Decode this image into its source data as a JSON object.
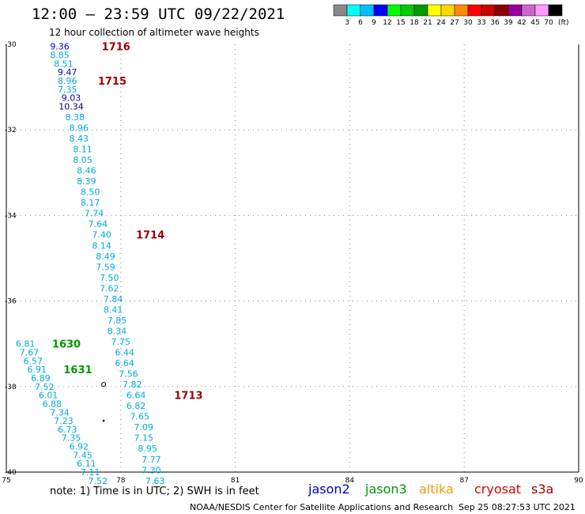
{
  "header": {
    "title": "12:00 – 23:59 UTC 09/22/2021",
    "subtitle": "12 hour collection of altimeter wave heights"
  },
  "colorbar": {
    "colors": [
      "#888888",
      "#00ffff",
      "#00bfff",
      "#0000ff",
      "#00ff00",
      "#00cc00",
      "#009900",
      "#ffff00",
      "#ffd700",
      "#ff8c00",
      "#ff0000",
      "#cc0000",
      "#8b0000",
      "#990099",
      "#cc66cc",
      "#ff99ff",
      "#000000"
    ],
    "labels": [
      "3",
      "6",
      "9",
      "12",
      "15",
      "18",
      "21",
      "24",
      "27",
      "30",
      "33",
      "36",
      "39",
      "42",
      "45",
      "70"
    ],
    "unit": "(ft)"
  },
  "footer": {
    "note": "note:  1) Time is in UTC;  2) SWH is in feet",
    "satellites": [
      {
        "name": "jason2",
        "color": "#0000cc"
      },
      {
        "name": "jason3",
        "color": "#009900"
      },
      {
        "name": "altika",
        "color": "#ff9900"
      },
      {
        "name": "cryosat",
        "color": "#dd0000"
      },
      {
        "name": "s3a",
        "color": "#990000"
      }
    ],
    "credit": "NOAA/NESDIS Center for Satellite Applications and Research",
    "timestamp": "Sep 25 08:27:53 UTC 2021"
  },
  "chart_data": {
    "type": "scatter",
    "title": "12:00 – 23:59 UTC 09/22/2021",
    "subtitle": "12 hour collection of altimeter wave heights",
    "xlabel": "",
    "ylabel": "",
    "xlim": [
      75,
      90
    ],
    "ylim": [
      -40,
      -30
    ],
    "x_ticks": [
      "75",
      "78",
      "81",
      "84",
      "87",
      "90"
    ],
    "y_ticks": [
      "-30",
      "-32",
      "-34",
      "-36",
      "-38",
      "-40"
    ],
    "grid": true,
    "value_colors": {
      "low": "#00aadd",
      "mid": "#0000cc",
      "high": "#000080"
    },
    "series": [
      {
        "name": "1716 / 1715 / 1714 / 1713",
        "color": "#990000",
        "points": [
          {
            "x": 76.4,
            "y": -30.05,
            "v": "9.36"
          },
          {
            "x": 76.4,
            "y": -30.25,
            "v": "8.85"
          },
          {
            "x": 76.5,
            "y": -30.45,
            "v": "8.51"
          },
          {
            "x": 76.6,
            "y": -30.65,
            "v": "9.47"
          },
          {
            "x": 76.6,
            "y": -30.85,
            "v": "8.96"
          },
          {
            "x": 76.6,
            "y": -31.05,
            "v": "7.35"
          },
          {
            "x": 76.7,
            "y": -31.25,
            "v": "9.03"
          },
          {
            "x": 76.7,
            "y": -31.45,
            "v": "10.34"
          },
          {
            "x": 76.8,
            "y": -31.7,
            "v": "8.38"
          },
          {
            "x": 76.9,
            "y": -31.95,
            "v": "8.96"
          },
          {
            "x": 76.9,
            "y": -32.2,
            "v": "8.43"
          },
          {
            "x": 77.0,
            "y": -32.45,
            "v": "8.11"
          },
          {
            "x": 77.0,
            "y": -32.7,
            "v": "8.05"
          },
          {
            "x": 77.1,
            "y": -32.95,
            "v": "8.46"
          },
          {
            "x": 77.1,
            "y": -33.2,
            "v": "8.39"
          },
          {
            "x": 77.2,
            "y": -33.45,
            "v": "8.50"
          },
          {
            "x": 77.2,
            "y": -33.7,
            "v": "8.17"
          },
          {
            "x": 77.3,
            "y": -33.95,
            "v": "7.74"
          },
          {
            "x": 77.4,
            "y": -34.2,
            "v": "7.64"
          },
          {
            "x": 77.5,
            "y": -34.45,
            "v": "7.40"
          },
          {
            "x": 77.5,
            "y": -34.7,
            "v": "8.14"
          },
          {
            "x": 77.6,
            "y": -34.95,
            "v": "8.49"
          },
          {
            "x": 77.6,
            "y": -35.2,
            "v": "7.59"
          },
          {
            "x": 77.7,
            "y": -35.45,
            "v": "7.50"
          },
          {
            "x": 77.7,
            "y": -35.7,
            "v": "7.62"
          },
          {
            "x": 77.8,
            "y": -35.95,
            "v": "7.84"
          },
          {
            "x": 77.8,
            "y": -36.2,
            "v": "8.41"
          },
          {
            "x": 77.9,
            "y": -36.45,
            "v": "7.85"
          },
          {
            "x": 77.9,
            "y": -36.7,
            "v": "8.34"
          },
          {
            "x": 78.0,
            "y": -36.95,
            "v": "7.75"
          },
          {
            "x": 78.1,
            "y": -37.2,
            "v": "6.44"
          },
          {
            "x": 78.1,
            "y": -37.45,
            "v": "6.64"
          },
          {
            "x": 78.2,
            "y": -37.7,
            "v": "7.56"
          },
          {
            "x": 78.3,
            "y": -37.95,
            "v": "7.82"
          },
          {
            "x": 78.4,
            "y": -38.2,
            "v": "6.64"
          },
          {
            "x": 78.4,
            "y": -38.45,
            "v": "6.82"
          },
          {
            "x": 78.5,
            "y": -38.7,
            "v": "7.65"
          },
          {
            "x": 78.6,
            "y": -38.95,
            "v": "7.09"
          },
          {
            "x": 78.6,
            "y": -39.2,
            "v": "7.15"
          },
          {
            "x": 78.7,
            "y": -39.45,
            "v": "8.95"
          },
          {
            "x": 78.8,
            "y": -39.7,
            "v": "7.77"
          },
          {
            "x": 78.8,
            "y": -39.95,
            "v": "7.30"
          },
          {
            "x": 78.9,
            "y": -40.2,
            "v": "7.63"
          }
        ],
        "pass_labels": [
          {
            "text": "1716",
            "x": 77.5,
            "y": -30.05
          },
          {
            "text": "1715",
            "x": 77.4,
            "y": -30.85
          },
          {
            "text": "1714",
            "x": 78.4,
            "y": -34.45
          },
          {
            "text": "1713",
            "x": 79.4,
            "y": -38.2
          }
        ]
      },
      {
        "name": "1630 / 1631",
        "color": "#009900",
        "points": [
          {
            "x": 75.5,
            "y": -37.0,
            "v": "6.81"
          },
          {
            "x": 75.6,
            "y": -37.2,
            "v": "7.67"
          },
          {
            "x": 75.7,
            "y": -37.4,
            "v": "6.57"
          },
          {
            "x": 75.8,
            "y": -37.6,
            "v": "6.91"
          },
          {
            "x": 75.9,
            "y": -37.8,
            "v": "6.89"
          },
          {
            "x": 76.0,
            "y": -38.0,
            "v": "7.52"
          },
          {
            "x": 76.1,
            "y": -38.2,
            "v": "6.01"
          },
          {
            "x": 76.2,
            "y": -38.4,
            "v": "6.88"
          },
          {
            "x": 76.4,
            "y": -38.6,
            "v": "7.34"
          },
          {
            "x": 76.5,
            "y": -38.8,
            "v": "7.23"
          },
          {
            "x": 76.6,
            "y": -39.0,
            "v": "6.73"
          },
          {
            "x": 76.7,
            "y": -39.2,
            "v": "7.35"
          },
          {
            "x": 76.9,
            "y": -39.4,
            "v": "6.92"
          },
          {
            "x": 77.0,
            "y": -39.6,
            "v": "7.45"
          },
          {
            "x": 77.1,
            "y": -39.8,
            "v": "6.11"
          },
          {
            "x": 77.2,
            "y": -40.0,
            "v": "7.11"
          },
          {
            "x": 77.4,
            "y": -40.2,
            "v": "7.52"
          }
        ],
        "pass_labels": [
          {
            "text": "1630",
            "x": 76.2,
            "y": -37.0
          },
          {
            "text": "1631",
            "x": 76.5,
            "y": -37.6
          }
        ]
      }
    ],
    "markers": [
      {
        "x": 77.55,
        "y": -37.95,
        "shape": "circle"
      },
      {
        "x": 77.55,
        "y": -38.8,
        "shape": "dot"
      }
    ]
  }
}
